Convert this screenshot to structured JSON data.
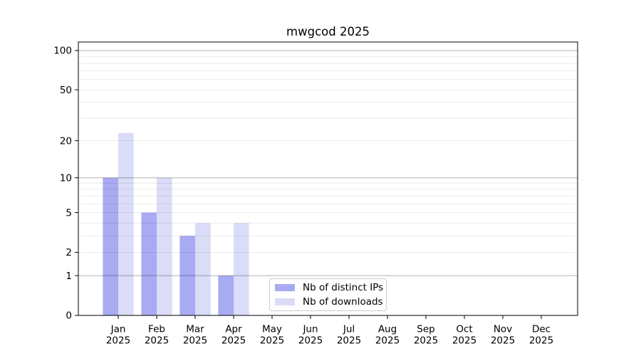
{
  "chart_data": {
    "type": "bar",
    "title": "mwgcod 2025",
    "categories": [
      "Jan 2025",
      "Feb 2025",
      "Mar 2025",
      "Apr 2025",
      "May 2025",
      "Jun 2025",
      "Jul 2025",
      "Aug 2025",
      "Sep 2025",
      "Oct 2025",
      "Nov 2025",
      "Dec 2025"
    ],
    "series": [
      {
        "name": "Nb of distinct IPs",
        "color": "#a8aaf2",
        "values": [
          10,
          5,
          3,
          1,
          0,
          0,
          0,
          0,
          0,
          0,
          0,
          0
        ]
      },
      {
        "name": "Nb of downloads",
        "color": "#dadcf8",
        "values": [
          23,
          10,
          4,
          4,
          0,
          0,
          0,
          0,
          0,
          0,
          0,
          0
        ]
      }
    ],
    "xlabel": "",
    "ylabel": "",
    "y_scale": "log10(1+value)",
    "y_ticks": [
      0,
      1,
      2,
      5,
      10,
      20,
      50,
      100
    ],
    "ylim": [
      0,
      116
    ],
    "grid": {
      "on": true,
      "major_values": [
        1,
        10,
        100
      ],
      "minor_values": [
        2,
        3,
        4,
        5,
        6,
        7,
        8,
        9,
        20,
        30,
        40,
        50,
        60,
        70,
        80,
        90
      ]
    },
    "legend": {
      "position": "lower-center",
      "entries": [
        "Nb of distinct IPs",
        "Nb of downloads"
      ]
    }
  },
  "colors": {
    "background": "#ffffff",
    "axis": "#000000",
    "grid_major": "rgba(0,0,0,0.30)",
    "grid_minor": "rgba(0,0,0,0.08)",
    "legend_border": "#cccccc",
    "text": "#000000"
  }
}
